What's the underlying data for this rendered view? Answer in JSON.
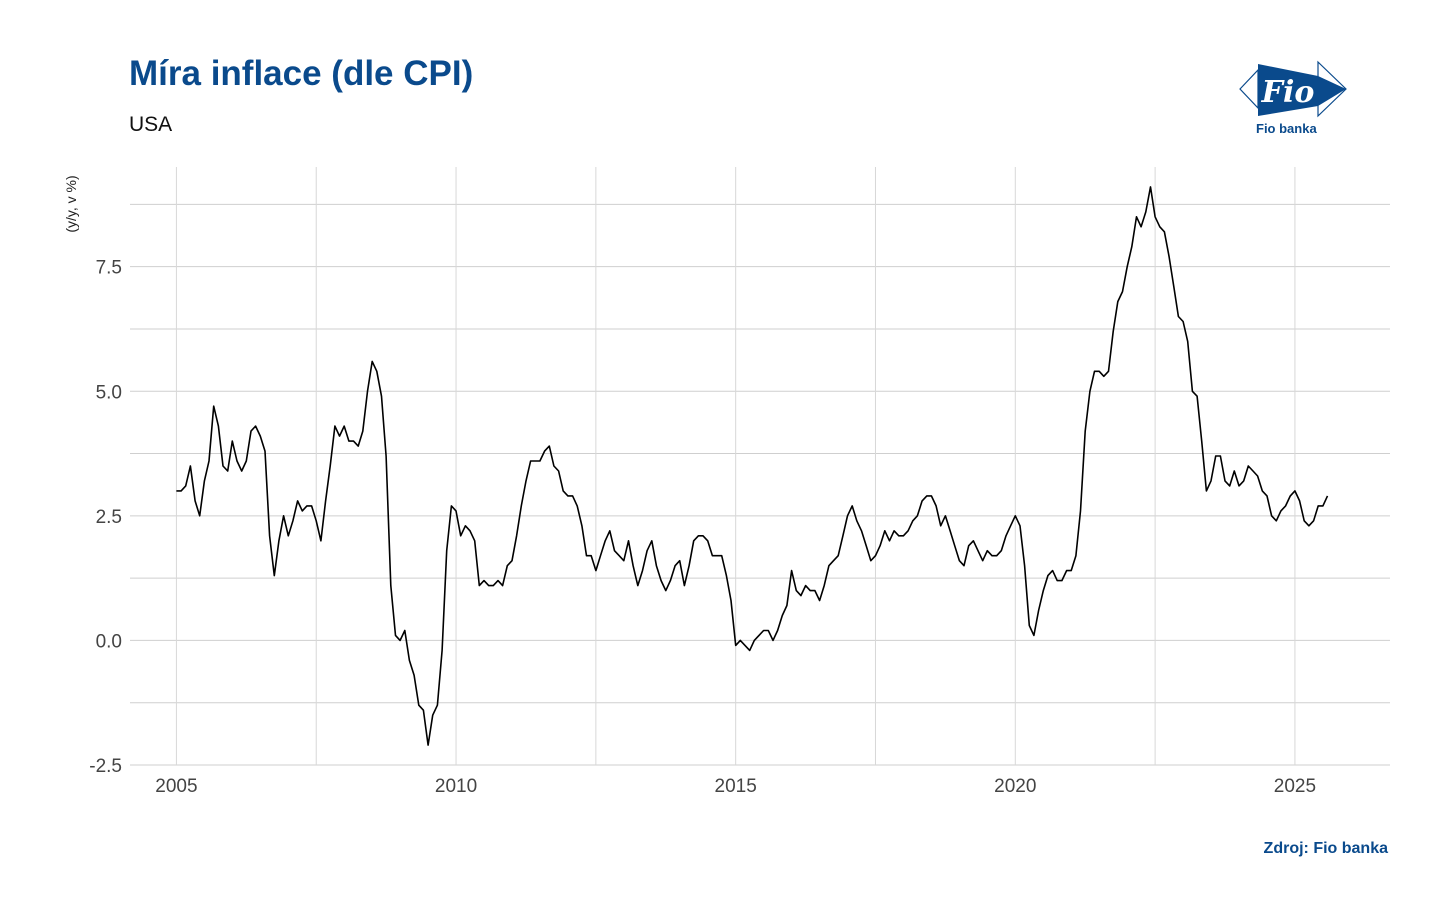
{
  "header": {
    "title": "Míra inflace (dle CPI)",
    "subtitle": "USA"
  },
  "logo": {
    "mark_text": "Fio",
    "label": "Fio banka",
    "brand_color": "#0a4a8c"
  },
  "footer": {
    "source": "Zdroj: Fio banka"
  },
  "chart_data": {
    "type": "line",
    "ylabel": "(y/y, v %)",
    "xlim": [
      2004.17,
      2026.7
    ],
    "ylim": [
      -2.5,
      9.5
    ],
    "x_ticks": [
      2005,
      2010,
      2015,
      2020,
      2025
    ],
    "y_ticks": [
      -2.5,
      0.0,
      2.5,
      5.0,
      7.5
    ],
    "y_tick_labels": [
      "-2.5",
      "0.0",
      "2.5",
      "5.0",
      "7.5"
    ],
    "x_tick_labels": [
      "2005",
      "2010",
      "2015",
      "2020",
      "2025"
    ],
    "grid": true,
    "line_color": "#000000",
    "series": [
      {
        "x_start": "2005-01",
        "frequency": "monthly",
        "values": [
          3.0,
          3.0,
          3.1,
          3.5,
          2.8,
          2.5,
          3.2,
          3.6,
          4.7,
          4.3,
          3.5,
          3.4,
          4.0,
          3.6,
          3.4,
          3.6,
          4.2,
          4.3,
          4.1,
          3.8,
          2.1,
          1.3,
          2.0,
          2.5,
          2.1,
          2.4,
          2.8,
          2.6,
          2.7,
          2.7,
          2.4,
          2.0,
          2.8,
          3.5,
          4.3,
          4.1,
          4.3,
          4.0,
          4.0,
          3.9,
          4.2,
          5.0,
          5.6,
          5.4,
          4.9,
          3.7,
          1.1,
          0.1,
          0.0,
          0.2,
          -0.4,
          -0.7,
          -1.3,
          -1.4,
          -2.1,
          -1.5,
          -1.3,
          -0.2,
          1.8,
          2.7,
          2.6,
          2.1,
          2.3,
          2.2,
          2.0,
          1.1,
          1.2,
          1.1,
          1.1,
          1.2,
          1.1,
          1.5,
          1.6,
          2.1,
          2.7,
          3.2,
          3.6,
          3.6,
          3.6,
          3.8,
          3.9,
          3.5,
          3.4,
          3.0,
          2.9,
          2.9,
          2.7,
          2.3,
          1.7,
          1.7,
          1.4,
          1.7,
          2.0,
          2.2,
          1.8,
          1.7,
          1.6,
          2.0,
          1.5,
          1.1,
          1.4,
          1.8,
          2.0,
          1.5,
          1.2,
          1.0,
          1.2,
          1.5,
          1.6,
          1.1,
          1.5,
          2.0,
          2.1,
          2.1,
          2.0,
          1.7,
          1.7,
          1.7,
          1.3,
          0.8,
          -0.1,
          0.0,
          -0.1,
          -0.2,
          0.0,
          0.1,
          0.2,
          0.2,
          0.0,
          0.2,
          0.5,
          0.7,
          1.4,
          1.0,
          0.9,
          1.1,
          1.0,
          1.0,
          0.8,
          1.1,
          1.5,
          1.6,
          1.7,
          2.1,
          2.5,
          2.7,
          2.4,
          2.2,
          1.9,
          1.6,
          1.7,
          1.9,
          2.2,
          2.0,
          2.2,
          2.1,
          2.1,
          2.2,
          2.4,
          2.5,
          2.8,
          2.9,
          2.9,
          2.7,
          2.3,
          2.5,
          2.2,
          1.9,
          1.6,
          1.5,
          1.9,
          2.0,
          1.8,
          1.6,
          1.8,
          1.7,
          1.7,
          1.8,
          2.1,
          2.3,
          2.5,
          2.3,
          1.5,
          0.3,
          0.1,
          0.6,
          1.0,
          1.3,
          1.4,
          1.2,
          1.2,
          1.4,
          1.4,
          1.7,
          2.6,
          4.2,
          5.0,
          5.4,
          5.4,
          5.3,
          5.4,
          6.2,
          6.8,
          7.0,
          7.5,
          7.9,
          8.5,
          8.3,
          8.6,
          9.1,
          8.5,
          8.3,
          8.2,
          7.7,
          7.1,
          6.5,
          6.4,
          6.0,
          5.0,
          4.9,
          4.0,
          3.0,
          3.2,
          3.7,
          3.7,
          3.2,
          3.1,
          3.4,
          3.1,
          3.2,
          3.5,
          3.4,
          3.3,
          3.0,
          2.9,
          2.5,
          2.4,
          2.6,
          2.7,
          2.9,
          3.0,
          2.8,
          2.4,
          2.3,
          2.4,
          2.7,
          2.7,
          2.9
        ]
      }
    ]
  }
}
